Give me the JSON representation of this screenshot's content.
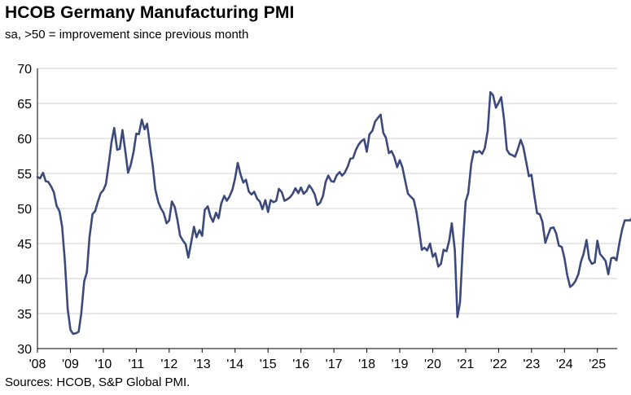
{
  "chart_data": {
    "type": "line",
    "title": "HCOB Germany Manufacturing PMI",
    "subtitle": "sa, >50 = improvement since previous month",
    "source": "Sources: HCOB, S&P Global PMI.",
    "xlabel": "",
    "ylabel": "",
    "xlim": [
      2008.0,
      2025.6
    ],
    "ylim": [
      30,
      70
    ],
    "yticks": [
      30,
      35,
      40,
      45,
      50,
      55,
      60,
      65,
      70
    ],
    "xticks": [
      {
        "value": 2008,
        "label": "'08"
      },
      {
        "value": 2009,
        "label": "'09"
      },
      {
        "value": 2010,
        "label": "'10"
      },
      {
        "value": 2011,
        "label": "'11"
      },
      {
        "value": 2012,
        "label": "'12"
      },
      {
        "value": 2013,
        "label": "'13"
      },
      {
        "value": 2014,
        "label": "'14"
      },
      {
        "value": 2015,
        "label": "'15"
      },
      {
        "value": 2016,
        "label": "'16"
      },
      {
        "value": 2017,
        "label": "'17"
      },
      {
        "value": 2018,
        "label": "'18"
      },
      {
        "value": 2019,
        "label": "'19"
      },
      {
        "value": 2020,
        "label": "'20"
      },
      {
        "value": 2021,
        "label": "'21"
      },
      {
        "value": 2022,
        "label": "'22"
      },
      {
        "value": 2023,
        "label": "'23"
      },
      {
        "value": 2024,
        "label": "'24"
      },
      {
        "value": 2025,
        "label": "'25"
      }
    ],
    "grid": {
      "horizontal": true,
      "vertical": false
    },
    "line_color": "#3b4a7a",
    "series": [
      {
        "name": "",
        "points": [
          [
            2008.0,
            54.5
          ],
          [
            2008.08,
            54.3
          ],
          [
            2008.17,
            55.1
          ],
          [
            2008.25,
            53.9
          ],
          [
            2008.33,
            53.8
          ],
          [
            2008.42,
            53.1
          ],
          [
            2008.5,
            52.3
          ],
          [
            2008.58,
            50.4
          ],
          [
            2008.67,
            49.6
          ],
          [
            2008.75,
            47.4
          ],
          [
            2008.83,
            42.6
          ],
          [
            2008.92,
            35.6
          ],
          [
            2009.0,
            32.7
          ],
          [
            2009.08,
            32.1
          ],
          [
            2009.17,
            32.2
          ],
          [
            2009.25,
            32.4
          ],
          [
            2009.33,
            35.0
          ],
          [
            2009.42,
            39.6
          ],
          [
            2009.5,
            40.9
          ],
          [
            2009.58,
            45.9
          ],
          [
            2009.67,
            49.2
          ],
          [
            2009.75,
            49.6
          ],
          [
            2009.83,
            50.9
          ],
          [
            2009.92,
            52.2
          ],
          [
            2010.0,
            52.6
          ],
          [
            2010.08,
            53.5
          ],
          [
            2010.17,
            56.6
          ],
          [
            2010.25,
            59.5
          ],
          [
            2010.33,
            61.5
          ],
          [
            2010.42,
            58.4
          ],
          [
            2010.5,
            58.5
          ],
          [
            2010.58,
            61.2
          ],
          [
            2010.67,
            58.1
          ],
          [
            2010.75,
            55.1
          ],
          [
            2010.83,
            56.2
          ],
          [
            2010.92,
            58.1
          ],
          [
            2011.0,
            60.7
          ],
          [
            2011.08,
            60.6
          ],
          [
            2011.17,
            62.7
          ],
          [
            2011.25,
            61.3
          ],
          [
            2011.33,
            62.1
          ],
          [
            2011.42,
            58.8
          ],
          [
            2011.5,
            56.1
          ],
          [
            2011.58,
            52.7
          ],
          [
            2011.67,
            50.9
          ],
          [
            2011.75,
            50.0
          ],
          [
            2011.83,
            49.4
          ],
          [
            2011.92,
            47.9
          ],
          [
            2012.0,
            48.3
          ],
          [
            2012.08,
            51.0
          ],
          [
            2012.17,
            50.2
          ],
          [
            2012.25,
            48.4
          ],
          [
            2012.33,
            46.1
          ],
          [
            2012.42,
            45.4
          ],
          [
            2012.5,
            44.9
          ],
          [
            2012.58,
            43.0
          ],
          [
            2012.67,
            45.2
          ],
          [
            2012.75,
            47.4
          ],
          [
            2012.83,
            45.9
          ],
          [
            2012.92,
            46.9
          ],
          [
            2013.0,
            46.1
          ],
          [
            2013.08,
            49.8
          ],
          [
            2013.17,
            50.3
          ],
          [
            2013.25,
            48.9
          ],
          [
            2013.33,
            48.1
          ],
          [
            2013.42,
            49.4
          ],
          [
            2013.5,
            48.6
          ],
          [
            2013.58,
            50.7
          ],
          [
            2013.67,
            51.8
          ],
          [
            2013.75,
            51.1
          ],
          [
            2013.83,
            51.7
          ],
          [
            2013.92,
            52.7
          ],
          [
            2014.0,
            54.3
          ],
          [
            2014.08,
            56.5
          ],
          [
            2014.17,
            54.8
          ],
          [
            2014.25,
            53.7
          ],
          [
            2014.33,
            54.1
          ],
          [
            2014.42,
            52.4
          ],
          [
            2014.5,
            52.0
          ],
          [
            2014.58,
            52.4
          ],
          [
            2014.67,
            51.4
          ],
          [
            2014.75,
            51.0
          ],
          [
            2014.83,
            49.9
          ],
          [
            2014.92,
            51.2
          ],
          [
            2015.0,
            49.5
          ],
          [
            2015.08,
            51.2
          ],
          [
            2015.17,
            50.9
          ],
          [
            2015.25,
            51.1
          ],
          [
            2015.33,
            52.8
          ],
          [
            2015.42,
            52.3
          ],
          [
            2015.5,
            51.1
          ],
          [
            2015.58,
            51.3
          ],
          [
            2015.67,
            51.6
          ],
          [
            2015.75,
            52.1
          ],
          [
            2015.83,
            52.9
          ],
          [
            2015.92,
            52.2
          ],
          [
            2016.0,
            53.0
          ],
          [
            2016.08,
            52.1
          ],
          [
            2016.17,
            52.5
          ],
          [
            2016.25,
            53.3
          ],
          [
            2016.33,
            52.8
          ],
          [
            2016.42,
            52.0
          ],
          [
            2016.5,
            50.5
          ],
          [
            2016.58,
            50.8
          ],
          [
            2016.67,
            51.8
          ],
          [
            2016.75,
            53.8
          ],
          [
            2016.83,
            54.7
          ],
          [
            2016.92,
            53.9
          ],
          [
            2017.0,
            53.8
          ],
          [
            2017.08,
            54.7
          ],
          [
            2017.17,
            55.2
          ],
          [
            2017.25,
            54.7
          ],
          [
            2017.33,
            55.1
          ],
          [
            2017.42,
            56.0
          ],
          [
            2017.5,
            57.1
          ],
          [
            2017.58,
            57.2
          ],
          [
            2017.67,
            58.4
          ],
          [
            2017.75,
            59.1
          ],
          [
            2017.83,
            59.6
          ],
          [
            2017.92,
            59.9
          ],
          [
            2018.0,
            58.1
          ],
          [
            2018.08,
            60.6
          ],
          [
            2018.17,
            61.1
          ],
          [
            2018.25,
            62.4
          ],
          [
            2018.33,
            62.9
          ],
          [
            2018.42,
            63.4
          ],
          [
            2018.5,
            60.8
          ],
          [
            2018.58,
            60.1
          ],
          [
            2018.67,
            57.9
          ],
          [
            2018.75,
            58.2
          ],
          [
            2018.83,
            57.4
          ],
          [
            2018.92,
            55.9
          ],
          [
            2019.0,
            56.9
          ],
          [
            2019.08,
            55.9
          ],
          [
            2019.17,
            53.8
          ],
          [
            2019.25,
            52.1
          ],
          [
            2019.33,
            51.7
          ],
          [
            2019.42,
            51.3
          ],
          [
            2019.5,
            49.7
          ],
          [
            2019.58,
            47.2
          ],
          [
            2019.67,
            44.1
          ],
          [
            2019.75,
            44.4
          ],
          [
            2019.83,
            44.0
          ],
          [
            2019.92,
            45.0
          ],
          [
            2020.0,
            43.1
          ],
          [
            2020.08,
            43.6
          ],
          [
            2020.17,
            41.7
          ],
          [
            2020.25,
            42.1
          ],
          [
            2020.33,
            44.1
          ],
          [
            2020.42,
            43.9
          ],
          [
            2020.5,
            45.4
          ],
          [
            2020.58,
            47.9
          ],
          [
            2020.67,
            44.1
          ],
          [
            2020.75,
            34.5
          ],
          [
            2020.83,
            36.6
          ],
          [
            2020.92,
            45.2
          ],
          [
            2021.0,
            51.0
          ],
          [
            2021.08,
            52.2
          ],
          [
            2021.17,
            56.4
          ],
          [
            2021.25,
            58.2
          ],
          [
            2021.33,
            58.0
          ],
          [
            2021.42,
            58.2
          ],
          [
            2021.5,
            57.8
          ],
          [
            2021.58,
            58.6
          ],
          [
            2021.67,
            61.1
          ],
          [
            2021.75,
            66.6
          ],
          [
            2021.83,
            66.2
          ],
          [
            2021.92,
            64.4
          ],
          [
            2022.0,
            65.1
          ],
          [
            2022.08,
            65.9
          ],
          [
            2022.17,
            62.6
          ],
          [
            2022.25,
            58.4
          ],
          [
            2022.33,
            57.8
          ],
          [
            2022.42,
            57.6
          ],
          [
            2022.5,
            57.4
          ],
          [
            2022.58,
            58.4
          ],
          [
            2022.67,
            59.8
          ],
          [
            2022.75,
            58.8
          ],
          [
            2022.83,
            56.9
          ],
          [
            2022.92,
            54.6
          ],
          [
            2023.0,
            54.8
          ],
          [
            2023.08,
            52.0
          ],
          [
            2023.17,
            49.3
          ],
          [
            2023.25,
            49.2
          ],
          [
            2023.33,
            48.1
          ],
          [
            2023.42,
            45.1
          ],
          [
            2023.5,
            46.2
          ],
          [
            2023.58,
            47.2
          ],
          [
            2023.67,
            47.3
          ],
          [
            2023.75,
            46.4
          ],
          [
            2023.83,
            44.7
          ],
          [
            2023.92,
            44.5
          ],
          [
            2024.0,
            42.9
          ],
          [
            2024.08,
            40.6
          ],
          [
            2024.17,
            38.8
          ],
          [
            2024.25,
            39.1
          ],
          [
            2024.33,
            39.6
          ],
          [
            2024.42,
            40.6
          ],
          [
            2024.5,
            42.4
          ],
          [
            2024.58,
            43.5
          ],
          [
            2024.67,
            45.5
          ],
          [
            2024.75,
            42.8
          ],
          [
            2024.83,
            42.1
          ],
          [
            2024.92,
            42.3
          ],
          [
            2025.0,
            45.4
          ],
          [
            2025.08,
            43.5
          ],
          [
            2025.17,
            43.0
          ],
          [
            2025.25,
            42.5
          ],
          [
            2025.33,
            40.6
          ],
          [
            2025.42,
            42.9
          ],
          [
            2025.5,
            43.0
          ],
          [
            2025.58,
            42.6
          ],
          [
            2025.67,
            45.1
          ],
          [
            2025.75,
            47.0
          ],
          [
            2025.83,
            48.3
          ],
          [
            2025.92,
            48.3
          ],
          [
            2026.0,
            48.3
          ],
          [
            2026.08,
            48.9
          ]
        ]
      }
    ]
  }
}
